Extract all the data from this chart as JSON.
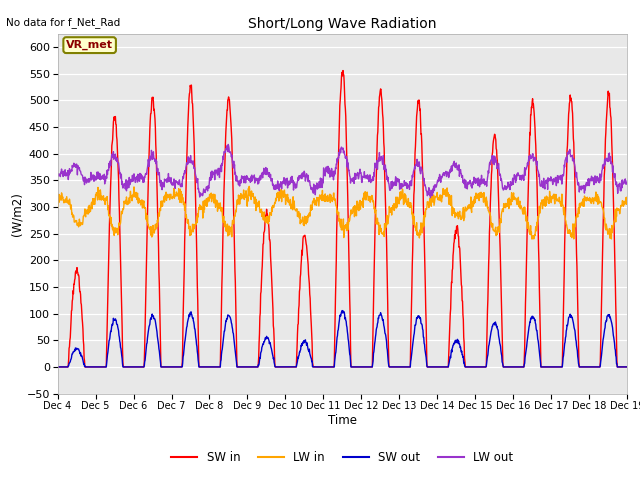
{
  "title": "Short/Long Wave Radiation",
  "xlabel": "Time",
  "ylabel": "(W/m2)",
  "note": "No data for f_Net_Rad",
  "legend_label": "VR_met",
  "ylim": [
    -50,
    625
  ],
  "yticks": [
    -50,
    0,
    50,
    100,
    150,
    200,
    250,
    300,
    350,
    400,
    450,
    500,
    550,
    600
  ],
  "xtick_labels": [
    "Dec 4",
    "Dec 5",
    "Dec 6",
    "Dec 7",
    "Dec 8",
    "Dec 9",
    "Dec 10",
    "Dec 11",
    "Dec 12",
    "Dec 13",
    "Dec 14",
    "Dec 15",
    "Dec 16",
    "Dec 17",
    "Dec 18",
    "Dec 19"
  ],
  "colors": {
    "SW_in": "#ff0000",
    "LW_in": "#ffa500",
    "SW_out": "#0000cc",
    "LW_out": "#9933cc"
  },
  "fig_bg": "#ffffff",
  "plot_bg": "#e8e8e8",
  "grid_color": "#ffffff",
  "line_width": 1.0,
  "sw_in_peaks": [
    180,
    470,
    505,
    525,
    503,
    285,
    245,
    555,
    515,
    500,
    260,
    435,
    500,
    505,
    510
  ],
  "lw_in_base": 310,
  "lw_out_base": 350
}
